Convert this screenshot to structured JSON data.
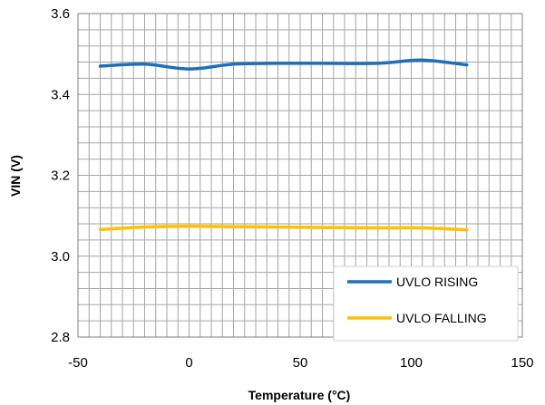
{
  "chart_data": {
    "type": "line",
    "xlabel": "Temperature (°C)",
    "ylabel": "VIN (V)",
    "xlim": [
      -50,
      150
    ],
    "ylim": [
      2.8,
      3.6
    ],
    "x_ticks": [
      "-50",
      "0",
      "50",
      "100",
      "150"
    ],
    "y_ticks": [
      "2.8",
      "3.0",
      "3.2",
      "3.4",
      "3.6"
    ],
    "grid": true,
    "legend_position": "bottom-right",
    "series": [
      {
        "name": "UVLO RISING",
        "color": "#1f6fb8",
        "x": [
          -40,
          -20,
          0,
          20,
          40,
          60,
          85,
          105,
          125
        ],
        "y": [
          3.47,
          3.475,
          3.463,
          3.475,
          3.477,
          3.477,
          3.477,
          3.485,
          3.473
        ]
      },
      {
        "name": "UVLO FALLING",
        "color": "#ffc000",
        "x": [
          -40,
          -20,
          0,
          20,
          40,
          60,
          85,
          105,
          125
        ],
        "y": [
          3.066,
          3.072,
          3.074,
          3.073,
          3.072,
          3.071,
          3.07,
          3.07,
          3.065
        ]
      }
    ]
  }
}
